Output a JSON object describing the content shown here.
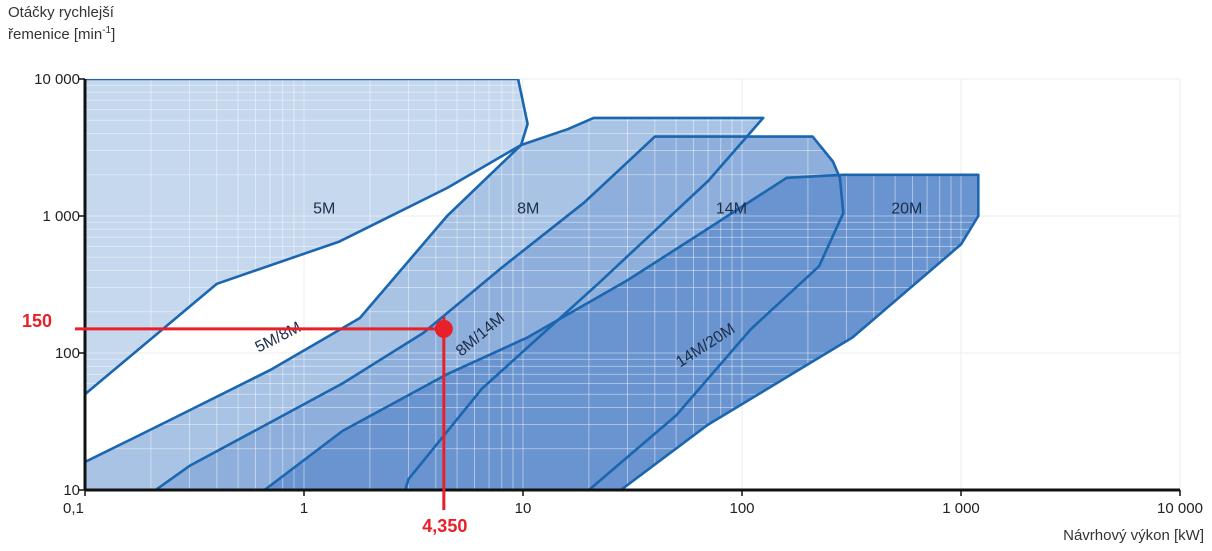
{
  "chart_data": {
    "type": "area",
    "ylabel_line1": "Otáčky rychlejší",
    "ylabel_line2": "řemenice [min",
    "ylabel_sup": "-1",
    "ylabel_close": "]",
    "xlabel": "Návrhový výkon [kW]",
    "x_scale": "log",
    "y_scale": "log",
    "xlim": [
      0.1,
      10000
    ],
    "ylim": [
      10,
      10000
    ],
    "x_ticks": [
      {
        "value": 0.1,
        "label": "0,1"
      },
      {
        "value": 1,
        "label": "1"
      },
      {
        "value": 10,
        "label": "10"
      },
      {
        "value": 100,
        "label": "100"
      },
      {
        "value": 1000,
        "label": "1 000"
      },
      {
        "value": 10000,
        "label": "10 000"
      }
    ],
    "y_ticks": [
      {
        "value": 10,
        "label": "10"
      },
      {
        "value": 100,
        "label": "100"
      },
      {
        "value": 1000,
        "label": "1 000"
      },
      {
        "value": 10000,
        "label": "10 000"
      }
    ],
    "grid": true,
    "regions": [
      {
        "name": "5M",
        "color": "#c6d8ee",
        "label_at": [
          1.1,
          1150
        ],
        "boundary": [
          [
            0.1,
            10
          ],
          [
            0.1,
            10000
          ],
          [
            9.5,
            10000
          ],
          [
            10.5,
            4700
          ],
          [
            9.8,
            3300
          ],
          [
            4.5,
            1600
          ],
          [
            1.45,
            650
          ],
          [
            0.4,
            320
          ],
          [
            0.1,
            50
          ]
        ]
      },
      {
        "name": "8M",
        "color": "#a9c3e4",
        "label_at": [
          9.4,
          1150
        ],
        "boundary": [
          [
            0.1,
            16
          ],
          [
            0.25,
            33
          ],
          [
            0.7,
            75
          ],
          [
            1.8,
            180
          ],
          [
            4.5,
            1000
          ],
          [
            9.8,
            3300
          ],
          [
            16,
            4300
          ],
          [
            21,
            5200
          ],
          [
            125,
            5200
          ],
          [
            70,
            1800
          ],
          [
            22,
            320
          ],
          [
            6.5,
            55
          ],
          [
            3,
            12
          ],
          [
            2.9,
            10
          ],
          [
            0.1,
            10
          ]
        ]
      },
      {
        "name": "14M",
        "color": "#8eafdb",
        "label_at": [
          76,
          1150
        ],
        "boundary": [
          [
            0.21,
            10
          ],
          [
            0.3,
            15
          ],
          [
            0.75,
            33
          ],
          [
            1.5,
            60
          ],
          [
            3.5,
            140
          ],
          [
            8,
            420
          ],
          [
            19,
            1250
          ],
          [
            40,
            3800
          ],
          [
            210,
            3800
          ],
          [
            260,
            2500
          ],
          [
            280,
            1900
          ],
          [
            290,
            1050
          ],
          [
            225,
            430
          ],
          [
            110,
            150
          ],
          [
            50,
            35
          ],
          [
            20,
            10
          ]
        ]
      },
      {
        "name": "20M",
        "color": "#6a94cf",
        "label_at": [
          480,
          1150
        ],
        "boundary": [
          [
            0.66,
            10
          ],
          [
            1.5,
            27
          ],
          [
            4.5,
            70
          ],
          [
            10.5,
            130
          ],
          [
            30,
            340
          ],
          [
            65,
            750
          ],
          [
            160,
            1900
          ],
          [
            290,
            2000
          ],
          [
            1200,
            2000
          ],
          [
            1200,
            1000
          ],
          [
            1000,
            620
          ],
          [
            320,
            130
          ],
          [
            70,
            30
          ],
          [
            28,
            10
          ]
        ]
      }
    ],
    "overlap_labels": [
      {
        "text": "5M/8M",
        "at": [
          0.78,
          121
        ],
        "angle": -27
      },
      {
        "text": "8M/14M",
        "at": [
          6.6,
          128
        ],
        "angle": -40
      },
      {
        "text": "14M/20M",
        "at": [
          70,
          106
        ],
        "angle": -33
      }
    ],
    "annotation": {
      "x_value": 4.35,
      "y_value": 150,
      "x_label": "4,350",
      "y_label": "150",
      "color": "#e8202a"
    }
  }
}
